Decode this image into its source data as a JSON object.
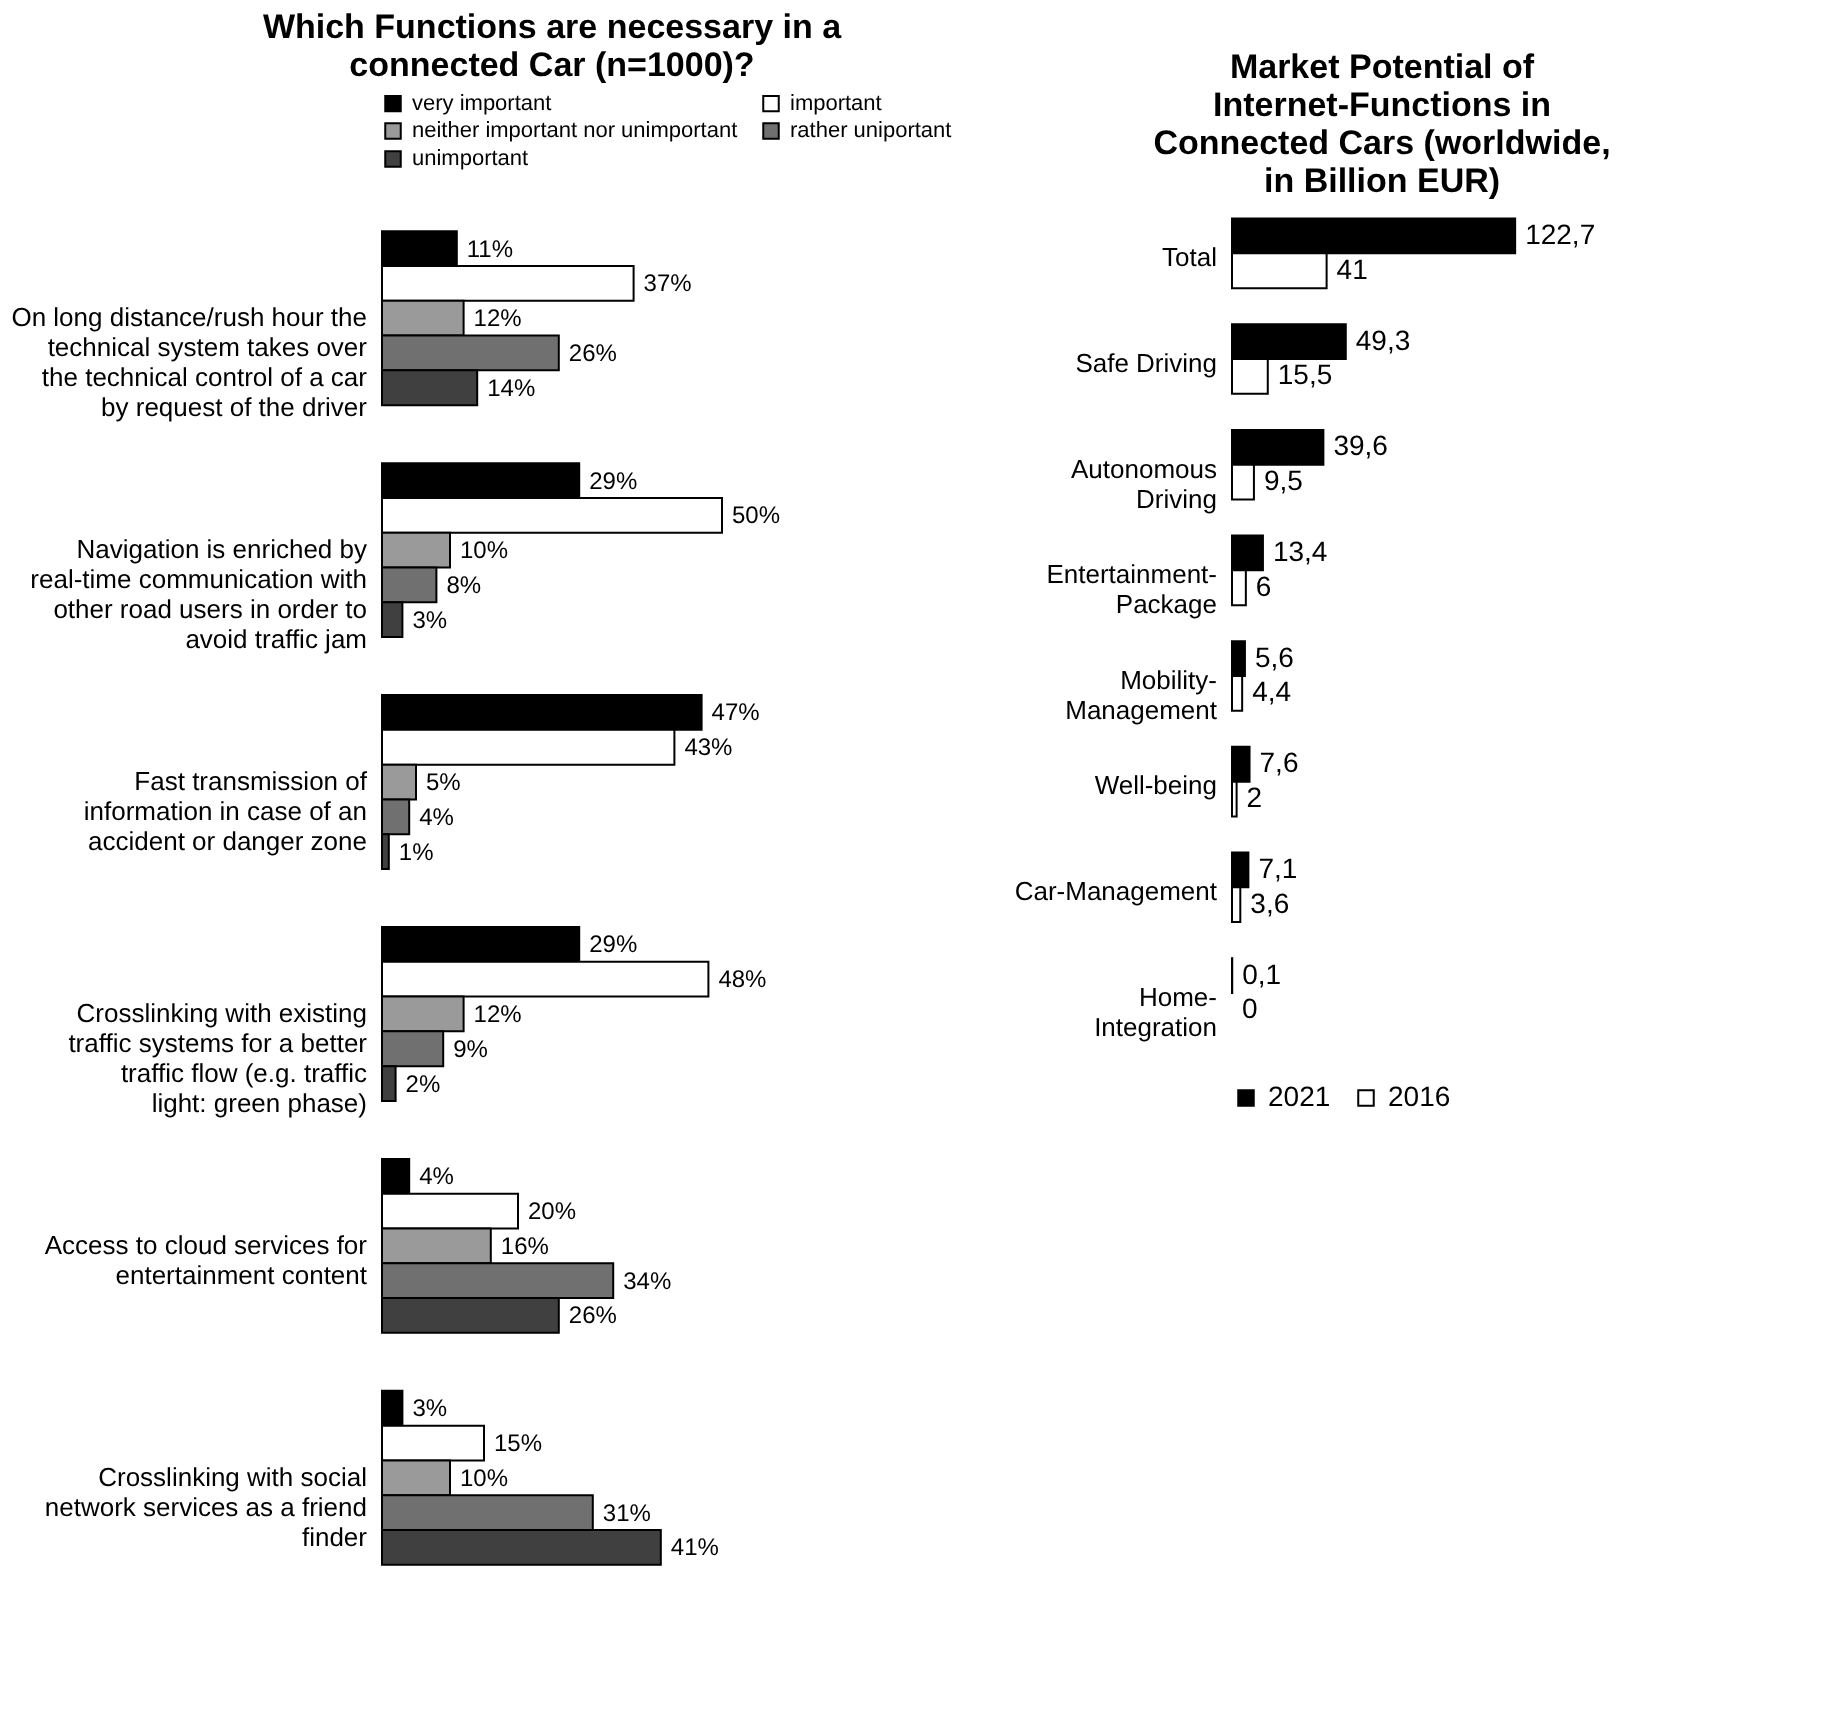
{
  "chart_data": [
    {
      "type": "bar",
      "orientation": "horizontal",
      "title": "Which Functions are necessary in a connected Car (n=1000)?",
      "legend": "top",
      "categories": [
        "On long distance/rush hour the technical system takes over the technical control of a car by request of the driver",
        "Navigation is enriched by real-time communication with other road users in order to avoid traffic jam",
        "Fast transmission of information in case of an accident or danger zone",
        "Crosslinking with existing traffic systems for a better traffic flow (e.g. traffic light: green phase)",
        "Access to cloud services for entertainment content",
        "Crosslinking with social network services as a friend finder"
      ],
      "series": [
        {
          "name": "very important",
          "color": "#000000",
          "values": [
            11,
            29,
            47,
            29,
            4,
            3
          ],
          "value_labels": [
            "11%",
            "29%",
            "47%",
            "29%",
            "4%",
            "3%"
          ]
        },
        {
          "name": "important",
          "color": "#ffffff",
          "values": [
            37,
            50,
            43,
            48,
            20,
            15
          ],
          "value_labels": [
            "37%",
            "50%",
            "43%",
            "48%",
            "20%",
            "15%"
          ]
        },
        {
          "name": "neither important nor unimportant",
          "color": "#9a9a9a",
          "values": [
            12,
            10,
            5,
            12,
            16,
            10
          ],
          "value_labels": [
            "12%",
            "10%",
            "5%",
            "12%",
            "16%",
            "10%"
          ]
        },
        {
          "name": "rather uniportant",
          "color": "#707070",
          "values": [
            26,
            8,
            4,
            9,
            34,
            31
          ],
          "value_labels": [
            "26%",
            "8%",
            "4%",
            "9%",
            "34%",
            "31%"
          ]
        },
        {
          "name": "unimportant",
          "color": "#404040",
          "values": [
            14,
            3,
            1,
            2,
            26,
            41
          ],
          "value_labels": [
            "14%",
            "3%",
            "1%",
            "2%",
            "26%",
            "41%"
          ]
        }
      ]
    },
    {
      "type": "bar",
      "orientation": "horizontal",
      "title": "Market Potential of Internet-Functions in Connected Cars (worldwide, in Billion EUR)",
      "legend": "bottom",
      "categories": [
        "Total",
        "Safe Driving",
        "Autonomous Driving",
        "Entertainment-Package",
        "Mobility-Management",
        "Well-being",
        "Car-Management",
        "Home-Integration"
      ],
      "series": [
        {
          "name": "2021",
          "color": "#000000",
          "values": [
            122.7,
            49.3,
            39.6,
            13.4,
            5.6,
            7.6,
            7.1,
            0.1
          ],
          "value_labels": [
            "122,7",
            "49,3",
            "39,6",
            "13,4",
            "5,6",
            "7,6",
            "7,1",
            "0,1"
          ]
        },
        {
          "name": "2016",
          "color": "#ffffff",
          "values": [
            41,
            15.5,
            9.5,
            6,
            4.4,
            2,
            3.6,
            0
          ],
          "value_labels": [
            "41",
            "15,5",
            "9,5",
            "6",
            "4,4",
            "2",
            "3,6",
            "0"
          ]
        }
      ]
    }
  ]
}
